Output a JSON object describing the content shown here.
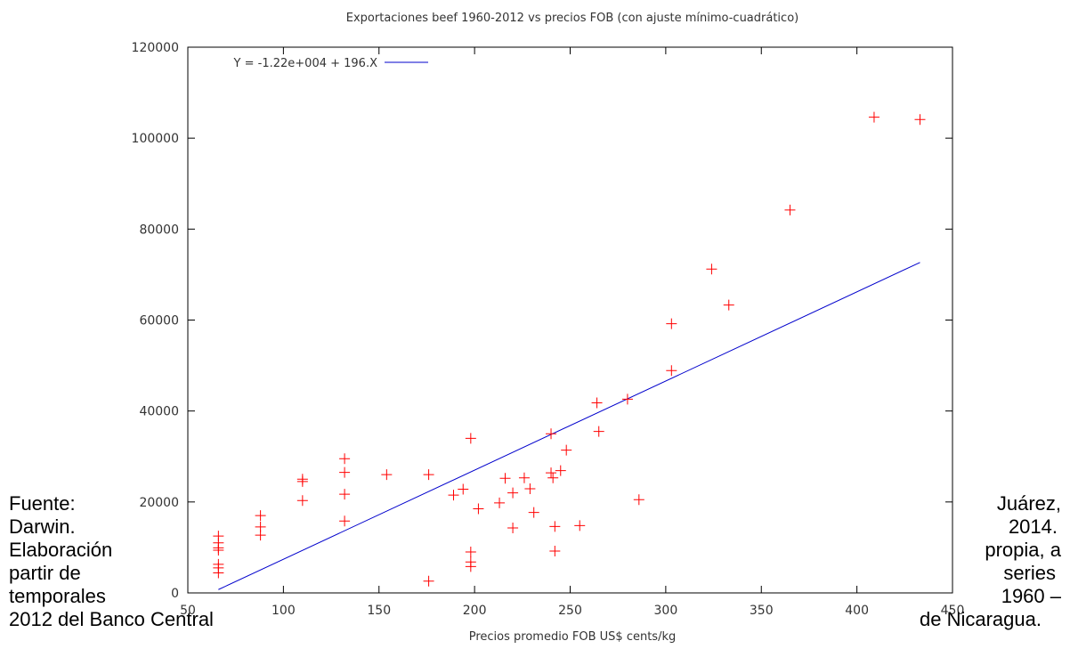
{
  "chart_data": {
    "type": "scatter",
    "title": "Exportaciones beef 1960-2012 vs precios FOB (con ajuste mínimo-cuadrático)",
    "xlabel": "Precios promedio FOB US$ cents/kg",
    "ylabel": "",
    "xlim": [
      50,
      450
    ],
    "ylim": [
      0,
      120000
    ],
    "x_ticks": [
      50,
      100,
      150,
      200,
      250,
      300,
      350,
      400,
      450
    ],
    "y_ticks": [
      0,
      20000,
      40000,
      60000,
      80000,
      100000,
      120000
    ],
    "grid": false,
    "legend_position": "top-left",
    "colors": {
      "points": "#ff0000",
      "fit": "#0000cc"
    },
    "series": [
      {
        "name": "",
        "kind": "points",
        "marker": "plus",
        "x": [
          66,
          66,
          66,
          66,
          66,
          66,
          66,
          88,
          88,
          88,
          110,
          110,
          110,
          132,
          132,
          132,
          132,
          154,
          176,
          176,
          189,
          194,
          198,
          198,
          198,
          198,
          202,
          213,
          216,
          220,
          220,
          226,
          229,
          231,
          240,
          240,
          241,
          242,
          242,
          245,
          248,
          255,
          264,
          265,
          280,
          286,
          303,
          303,
          324,
          333,
          365,
          409,
          433
        ],
        "y": [
          12500,
          11000,
          9900,
          9400,
          6300,
          5500,
          4400,
          17000,
          14500,
          12700,
          25000,
          24500,
          20300,
          29500,
          26500,
          21700,
          15800,
          26000,
          26000,
          2600,
          21500,
          22800,
          34000,
          9000,
          6800,
          5800,
          18500,
          19800,
          25200,
          22000,
          14300,
          25300,
          22900,
          17700,
          35000,
          26400,
          25300,
          14600,
          9200,
          26900,
          31400,
          14800,
          41800,
          35500,
          42600,
          20500,
          59200,
          48900,
          71200,
          63300,
          84200,
          104600,
          104100
        ]
      },
      {
        "name": "Y = -1.22e+004 + 196.X",
        "kind": "line",
        "intercept": -12200,
        "slope": 196,
        "x_range": [
          66,
          433
        ]
      }
    ]
  },
  "caption": {
    "left_lines": [
      "Fuente:",
      "Darwin.",
      "Elaboración",
      "partir de",
      "temporales",
      "2012 del Banco Central"
    ],
    "right_lines": [
      "Juárez,",
      "2014.",
      "propia, a",
      "series",
      "1960 –",
      "de Nicaragua."
    ]
  }
}
